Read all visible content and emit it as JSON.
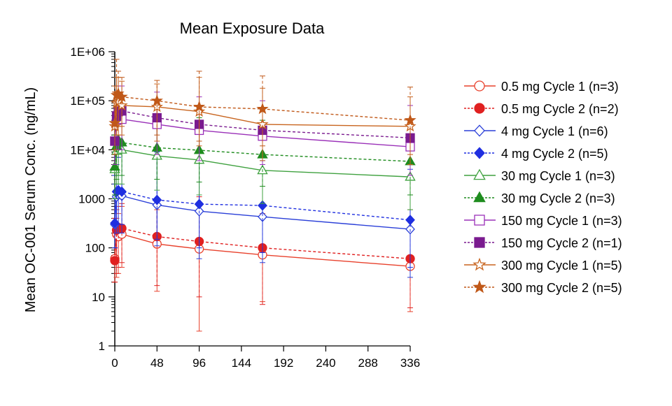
{
  "chart_data": {
    "type": "line",
    "title": "Mean Exposure Data",
    "xlabel": "",
    "ylabel": "Mean OC-001 Serum Conc. (ng/mL)",
    "y_scale": "log",
    "xlim": [
      0,
      336
    ],
    "ylim": [
      1,
      1000000
    ],
    "x_ticks": [
      0,
      48,
      96,
      144,
      192,
      240,
      288,
      336
    ],
    "x_tick_labels": [
      "0",
      "48",
      "96",
      "144",
      "192",
      "240",
      "288",
      "336"
    ],
    "y_ticks": [
      1,
      10,
      100,
      1000,
      10000,
      100000,
      1000000
    ],
    "y_tick_labels": [
      "1",
      "10",
      "100",
      "1000",
      "1E+04",
      "1E+05",
      "1E+06"
    ],
    "grid": false,
    "legend_position": "right",
    "series": [
      {
        "name": "0.5 mg Cycle 1 (n=3)",
        "color": "#e8412c",
        "marker": "circle-open",
        "line": "solid",
        "x": [
          0,
          2,
          4,
          8,
          48,
          96,
          168,
          336
        ],
        "y": [
          60,
          190,
          170,
          190,
          120,
          95,
          72,
          42
        ],
        "err_low": [
          20,
          25,
          30,
          40,
          13,
          2,
          8,
          5
        ],
        "err_high": [
          300,
          400,
          500,
          700,
          600,
          800,
          500,
          400
        ]
      },
      {
        "name": "0.5 mg Cycle 2 (n=2)",
        "color": "#e02020",
        "marker": "circle-filled",
        "line": "dashed",
        "x": [
          0,
          2,
          4,
          8,
          48,
          96,
          168,
          336
        ],
        "y": [
          55,
          230,
          260,
          250,
          170,
          135,
          100,
          60
        ],
        "err_low": [
          20,
          30,
          40,
          50,
          17,
          10,
          7,
          6
        ],
        "err_high": [
          400,
          600,
          700,
          800,
          900,
          1100,
          800,
          600
        ]
      },
      {
        "name": "4 mg Cycle 1 (n=6)",
        "color": "#2a3fd8",
        "marker": "diamond-open",
        "line": "solid",
        "x": [
          0,
          2,
          4,
          8,
          48,
          96,
          168,
          336
        ],
        "y": [
          300,
          1100,
          1200,
          1150,
          750,
          560,
          430,
          240
        ],
        "err_low": [
          100,
          200,
          200,
          200,
          110,
          60,
          50,
          25
        ],
        "err_high": [
          2000,
          5000,
          7000,
          9000,
          8000,
          8500,
          6000,
          4000
        ]
      },
      {
        "name": "4 mg Cycle 2 (n=5)",
        "color": "#1f2fe0",
        "marker": "diamond-filled",
        "line": "dashed",
        "x": [
          0,
          2,
          4,
          8,
          48,
          96,
          168,
          336
        ],
        "y": [
          320,
          1400,
          1500,
          1400,
          950,
          780,
          730,
          370
        ],
        "err_low": [
          100,
          300,
          300,
          300,
          150,
          100,
          80,
          40
        ],
        "err_high": [
          3000,
          7000,
          9000,
          10000,
          9000,
          9000,
          8000,
          6000
        ]
      },
      {
        "name": "30 mg Cycle 1 (n=3)",
        "color": "#3fa13f",
        "marker": "triangle-open",
        "line": "solid",
        "x": [
          0,
          2,
          4,
          8,
          48,
          96,
          168,
          336
        ],
        "y": [
          4000,
          9500,
          11000,
          10000,
          7500,
          6200,
          3800,
          2800
        ],
        "err_low": [
          1000,
          2000,
          2000,
          2000,
          1500,
          1200,
          800,
          600
        ],
        "err_high": [
          15000,
          30000,
          40000,
          40000,
          30000,
          30000,
          25000,
          20000
        ]
      },
      {
        "name": "30 mg Cycle 2 (n=3)",
        "color": "#1e8c1e",
        "marker": "triangle-filled",
        "line": "dashed",
        "x": [
          0,
          2,
          4,
          8,
          48,
          96,
          168,
          336
        ],
        "y": [
          4500,
          12000,
          16000,
          14000,
          11000,
          9800,
          8000,
          5800
        ],
        "err_low": [
          1200,
          2500,
          3000,
          3000,
          2500,
          2200,
          1800,
          1200
        ],
        "err_high": [
          20000,
          40000,
          50000,
          50000,
          45000,
          45000,
          40000,
          35000
        ]
      },
      {
        "name": "150 mg Cycle 1 (n=3)",
        "color": "#9a30b8",
        "marker": "square-open",
        "line": "solid",
        "x": [
          0,
          2,
          4,
          8,
          48,
          96,
          168,
          336
        ],
        "y": [
          15000,
          40000,
          46000,
          42000,
          33000,
          25000,
          19000,
          11500
        ],
        "err_low": [
          5000,
          10000,
          10000,
          10000,
          8000,
          6000,
          5000,
          3000
        ],
        "err_high": [
          60000,
          150000,
          200000,
          200000,
          150000,
          120000,
          100000,
          80000
        ]
      },
      {
        "name": "150 mg Cycle 2 (n=1)",
        "color": "#7a1a8f",
        "marker": "square-filled",
        "line": "dashed",
        "x": [
          0,
          2,
          4,
          8,
          48,
          96,
          168,
          336
        ],
        "y": [
          15000,
          48000,
          60000,
          62000,
          45000,
          33000,
          25000,
          17500
        ]
      },
      {
        "name": "300 mg Cycle 1 (n=5)",
        "color": "#c8641e",
        "marker": "star-open",
        "line": "solid",
        "x": [
          0,
          2,
          4,
          8,
          48,
          96,
          168,
          336
        ],
        "y": [
          30000,
          90000,
          95000,
          80000,
          75000,
          60000,
          33000,
          30000
        ],
        "err_low": [
          8000,
          20000,
          20000,
          20000,
          15000,
          12000,
          6000,
          5000
        ],
        "err_high": [
          150000,
          300000,
          300000,
          250000,
          220000,
          300000,
          180000,
          120000
        ]
      },
      {
        "name": "300 mg Cycle 2 (n=5)",
        "color": "#c05818",
        "marker": "star-filled",
        "line": "dashed",
        "x": [
          0,
          2,
          4,
          8,
          48,
          96,
          168,
          336
        ],
        "y": [
          35000,
          130000,
          140000,
          120000,
          100000,
          75000,
          68000,
          40000
        ],
        "err_low": [
          10000,
          30000,
          30000,
          30000,
          20000,
          15000,
          12000,
          8000
        ],
        "err_high": [
          200000,
          700000,
          400000,
          300000,
          260000,
          400000,
          320000,
          190000
        ]
      }
    ]
  }
}
